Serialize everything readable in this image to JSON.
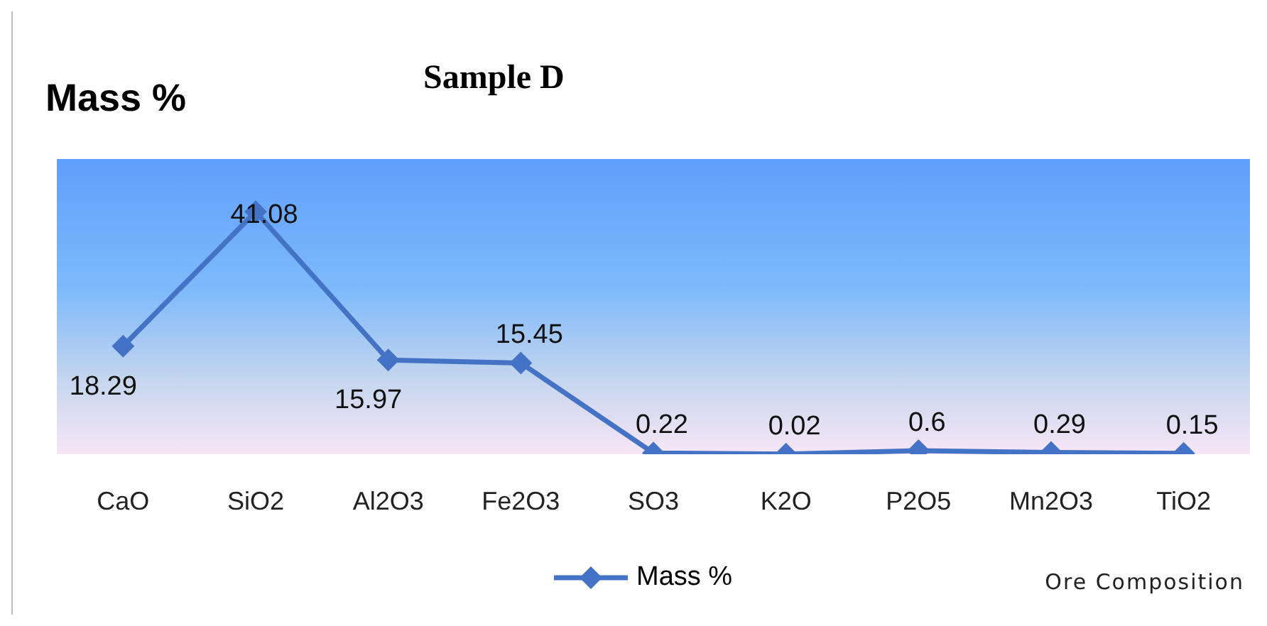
{
  "chart_data": {
    "type": "line",
    "title": "Sample D",
    "ylabel": "Mass %",
    "xlabel": "Ore Composition",
    "categories": [
      "CaO",
      "SiO2",
      "Al2O3",
      "Fe2O3",
      "SO3",
      "K2O",
      "P2O5",
      "Mn2O3",
      "TiO2"
    ],
    "series": [
      {
        "name": "Mass %",
        "color": "#4472c4",
        "values": [
          18.29,
          41.08,
          15.97,
          15.45,
          0.22,
          0.02,
          0.6,
          0.29,
          0.15
        ]
      }
    ],
    "ylim": [
      0,
      50
    ],
    "tick_labels": "x",
    "data_labels": true,
    "legend": "bottom",
    "marker": "diamond",
    "line_style": "solid",
    "grid": false
  }
}
